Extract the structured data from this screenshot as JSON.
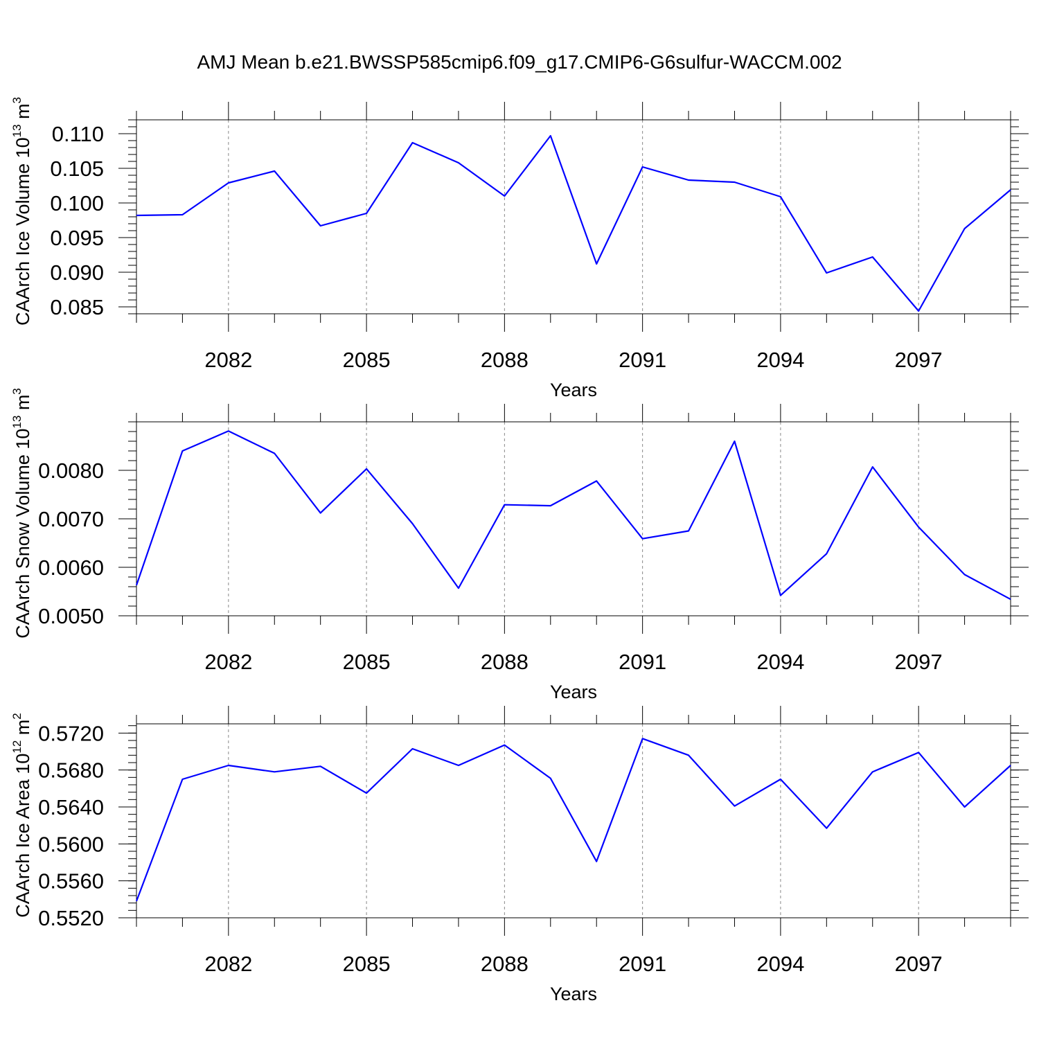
{
  "title": "AMJ Mean b.e21.BWSSP585cmip6.f09_g17.CMIP6-G6sulfur-WACCM.002",
  "chart_data": [
    {
      "type": "line",
      "ylabel": "CAArch Ice Volume 10",
      "ylabel_sup": "13",
      "ylabel_unit": " m",
      "ylabel_unit_sup": "3",
      "xlabel": "Years",
      "x": [
        2080,
        2081,
        2082,
        2083,
        2084,
        2085,
        2086,
        2087,
        2088,
        2089,
        2090,
        2091,
        2092,
        2093,
        2094,
        2095,
        2096,
        2097,
        2098,
        2099
      ],
      "xlim": [
        2080,
        2099
      ],
      "xticks": [
        "2082",
        "2085",
        "2088",
        "2091",
        "2094",
        "2097"
      ],
      "ylim": [
        0.084,
        0.112
      ],
      "yticks": [
        "0.085",
        "0.090",
        "0.095",
        "0.100",
        "0.105",
        "0.110"
      ],
      "ytick_values": [
        0.085,
        0.09,
        0.095,
        0.1,
        0.105,
        0.11
      ],
      "yminor_step": 0.001,
      "series": [
        {
          "color": "#0000ff",
          "values": [
            0.0982,
            0.0983,
            0.1029,
            0.1046,
            0.0967,
            0.0985,
            0.1087,
            0.1058,
            0.101,
            0.1097,
            0.0912,
            0.1052,
            0.1033,
            0.103,
            0.1009,
            0.0899,
            0.0922,
            0.0844,
            0.0963,
            0.1019
          ]
        }
      ]
    },
    {
      "type": "line",
      "ylabel": "CAArch Snow Volume 10",
      "ylabel_sup": "13",
      "ylabel_unit": " m",
      "ylabel_unit_sup": "3",
      "xlabel": "Years",
      "x": [
        2080,
        2081,
        2082,
        2083,
        2084,
        2085,
        2086,
        2087,
        2088,
        2089,
        2090,
        2091,
        2092,
        2093,
        2094,
        2095,
        2096,
        2097,
        2098,
        2099
      ],
      "xlim": [
        2080,
        2099
      ],
      "xticks": [
        "2082",
        "2085",
        "2088",
        "2091",
        "2094",
        "2097"
      ],
      "ylim": [
        0.005,
        0.009
      ],
      "yticks": [
        "0.0050",
        "0.0060",
        "0.0070",
        "0.0080"
      ],
      "ytick_values": [
        0.005,
        0.006,
        0.007,
        0.008
      ],
      "yminor_step": 0.0002,
      "series": [
        {
          "color": "#0000ff",
          "values": [
            0.00563,
            0.0084,
            0.00881,
            0.00835,
            0.00712,
            0.00803,
            0.0069,
            0.00557,
            0.00729,
            0.00727,
            0.00778,
            0.00659,
            0.00675,
            0.0086,
            0.00542,
            0.00628,
            0.00807,
            0.00683,
            0.00585,
            0.00534
          ]
        }
      ]
    },
    {
      "type": "line",
      "ylabel": "CAArch Ice Area 10",
      "ylabel_sup": "12",
      "ylabel_unit": " m",
      "ylabel_unit_sup": "2",
      "xlabel": "Years",
      "x": [
        2080,
        2081,
        2082,
        2083,
        2084,
        2085,
        2086,
        2087,
        2088,
        2089,
        2090,
        2091,
        2092,
        2093,
        2094,
        2095,
        2096,
        2097,
        2098,
        2099
      ],
      "xlim": [
        2080,
        2099
      ],
      "xticks": [
        "2082",
        "2085",
        "2088",
        "2091",
        "2094",
        "2097"
      ],
      "ylim": [
        0.552,
        0.573
      ],
      "yticks": [
        "0.5520",
        "0.5560",
        "0.5600",
        "0.5640",
        "0.5680",
        "0.5720"
      ],
      "ytick_values": [
        0.552,
        0.556,
        0.56,
        0.564,
        0.568,
        0.572
      ],
      "yminor_step": 0.0008,
      "series": [
        {
          "color": "#0000ff",
          "values": [
            0.5538,
            0.567,
            0.5685,
            0.5678,
            0.5684,
            0.5655,
            0.5703,
            0.5685,
            0.5707,
            0.5671,
            0.5581,
            0.5714,
            0.5696,
            0.5641,
            0.567,
            0.5617,
            0.5678,
            0.5699,
            0.564,
            0.5685
          ]
        }
      ]
    }
  ]
}
